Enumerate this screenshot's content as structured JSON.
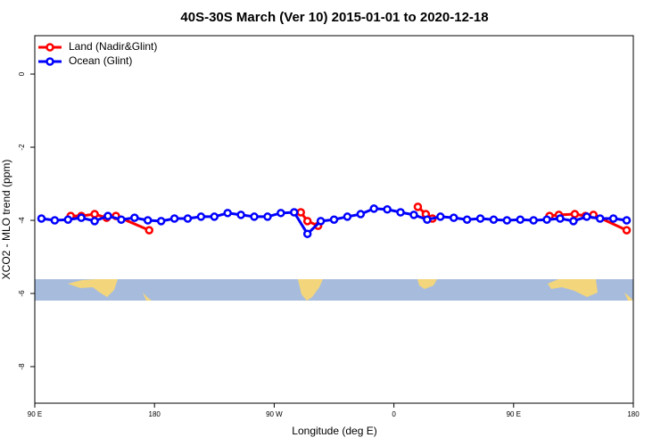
{
  "chart_data": {
    "type": "line",
    "title": "40S-30S March (Ver 10)   2015-01-01 to 2020-12-18",
    "x_label": "Longitude (deg E)",
    "y_label": "XCO2 - MLO trend (ppm)",
    "xlim": [
      90,
      540
    ],
    "ylim": [
      -9,
      1.05
    ],
    "xticks": [
      {
        "value": 90,
        "label": "90 E"
      },
      180,
      {
        "value": 270,
        "label": "90 W"
      },
      {
        "value": 360,
        "label": "0"
      },
      {
        "value": 450,
        "label": "90 E"
      },
      {
        "value": 540,
        "label": "180"
      }
    ],
    "yticks": [
      0,
      -2,
      -4,
      -6,
      -8
    ],
    "legend": "top-left",
    "series": [
      {
        "name": "Land (Nadir&Glint)",
        "color": "#ff0000",
        "x": [
          117,
          125,
          135,
          144,
          151,
          176,
          null,
          290,
          295,
          303,
          null,
          378,
          384,
          389,
          null,
          477,
          484,
          496,
          504,
          510,
          535
        ],
        "values": [
          -3.88,
          -3.88,
          -3.83,
          -3.93,
          -3.88,
          -4.27,
          null,
          -3.78,
          -4.02,
          -4.15,
          null,
          -3.63,
          -3.83,
          -3.95,
          null,
          -3.88,
          -3.85,
          -3.83,
          -3.88,
          -3.85,
          -4.27
        ]
      },
      {
        "name": "Ocean (Glint)",
        "color": "#0000ff",
        "x": [
          95,
          105,
          115,
          125,
          135,
          145,
          155,
          165,
          175,
          185,
          195,
          205,
          215,
          225,
          235,
          245,
          255,
          265,
          275,
          285,
          295,
          305,
          315,
          325,
          335,
          345,
          355,
          365,
          375,
          385,
          395,
          405,
          415,
          425,
          435,
          445,
          455,
          465,
          475,
          485,
          495,
          505,
          515,
          525,
          535
        ],
        "values": [
          -3.95,
          -4.0,
          -3.98,
          -3.93,
          -4.02,
          -3.88,
          -3.98,
          -3.93,
          -4.0,
          -4.02,
          -3.95,
          -3.95,
          -3.9,
          -3.9,
          -3.8,
          -3.85,
          -3.9,
          -3.9,
          -3.8,
          -3.78,
          -4.37,
          -4.02,
          -3.98,
          -3.9,
          -3.83,
          -3.68,
          -3.7,
          -3.78,
          -3.85,
          -3.98,
          -3.9,
          -3.93,
          -3.98,
          -3.95,
          -3.98,
          -4.0,
          -3.98,
          -4.0,
          -3.98,
          -3.95,
          -4.02,
          -3.9,
          -3.95,
          -3.95,
          -4.0
        ]
      }
    ]
  }
}
